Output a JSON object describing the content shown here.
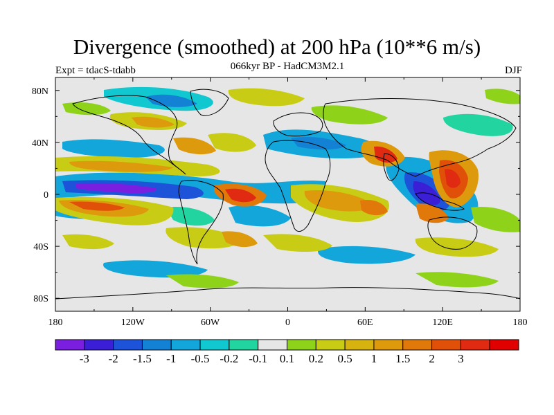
{
  "title": "Divergence (smoothed) at 200 hPa (10**6 m/s)",
  "subtitle": "066kyr BP - HadCM3M2.1",
  "experiment": "Expt = tdacS-tdabb",
  "season": "DJF",
  "map": {
    "background_color": "#e6e6e6",
    "lat_ticks": [
      {
        "label": "80N",
        "value": 80
      },
      {
        "label": "40N",
        "value": 40
      },
      {
        "label": "0",
        "value": 0
      },
      {
        "label": "40S",
        "value": -40
      },
      {
        "label": "80S",
        "value": -80
      }
    ],
    "lon_ticks": [
      {
        "label": "180",
        "value": -180
      },
      {
        "label": "120W",
        "value": -120
      },
      {
        "label": "60W",
        "value": -60
      },
      {
        "label": "0",
        "value": 0
      },
      {
        "label": "60E",
        "value": 60
      },
      {
        "label": "120E",
        "value": 120
      },
      {
        "label": "180",
        "value": 180
      }
    ]
  },
  "colorbar": {
    "colors": [
      "#7a1fe0",
      "#3a1fd6",
      "#1c53d9",
      "#1482d4",
      "#12a6da",
      "#11c8d0",
      "#22d4a0",
      "#e6e6e6",
      "#8fd21a",
      "#c8cc14",
      "#d6b30e",
      "#dc9a0c",
      "#e0780a",
      "#e05008",
      "#e02a12",
      "#e00000"
    ],
    "labels": [
      "-3",
      "-2",
      "-1.5",
      "-1",
      "-0.5",
      "-0.2",
      "-0.1",
      "0.1",
      "0.2",
      "0.5",
      "1",
      "1.5",
      "2",
      "3"
    ]
  }
}
